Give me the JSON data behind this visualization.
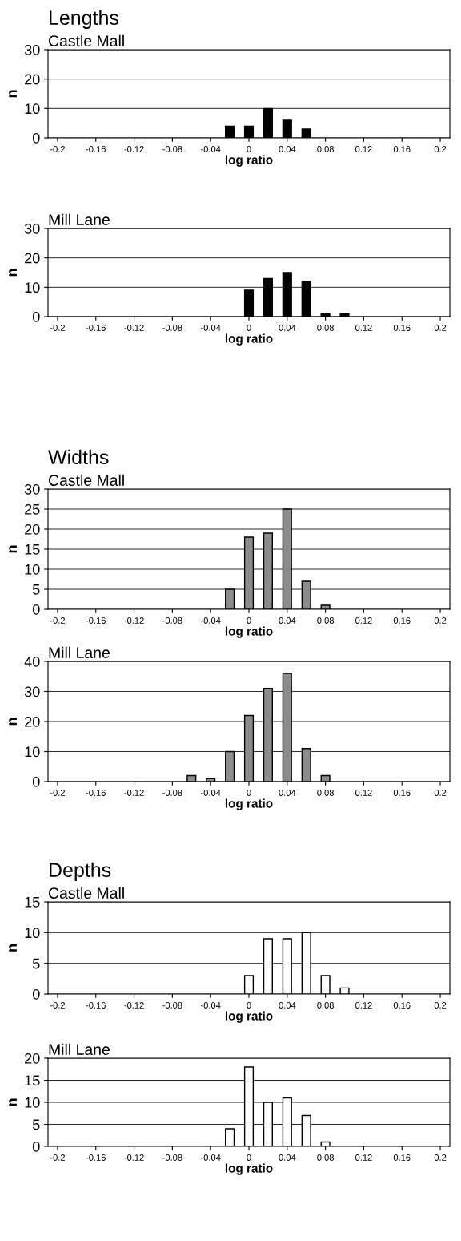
{
  "chart_data": [
    {
      "type": "bar",
      "title": "Lengths",
      "subtitle": "Castle Mall",
      "xlabel": "log ratio",
      "ylabel": "n",
      "x": [
        -0.02,
        0,
        0.02,
        0.04,
        0.06
      ],
      "values": [
        4,
        4,
        10,
        6,
        3
      ],
      "color": "#000000",
      "xlim": [
        -0.21,
        0.21
      ],
      "xticks": [
        -0.2,
        -0.16,
        -0.12,
        -0.08,
        -0.04,
        0,
        0.04,
        0.08,
        0.12,
        0.16,
        0.2
      ],
      "ylim": [
        0,
        30
      ],
      "yticks": [
        0,
        10,
        20,
        30
      ],
      "grid": "y",
      "legend": false
    },
    {
      "type": "bar",
      "title": "Mill Lane",
      "xlabel": "log ratio",
      "ylabel": "n",
      "x": [
        0,
        0.02,
        0.04,
        0.06,
        0.08,
        0.1
      ],
      "values": [
        9,
        13,
        15,
        12,
        1,
        1
      ],
      "color": "#000000",
      "xlim": [
        -0.21,
        0.21
      ],
      "xticks": [
        -0.2,
        -0.16,
        -0.12,
        -0.08,
        -0.04,
        0,
        0.04,
        0.08,
        0.12,
        0.16,
        0.2
      ],
      "ylim": [
        0,
        30
      ],
      "yticks": [
        0,
        10,
        20,
        30
      ],
      "grid": "y",
      "legend": false
    },
    {
      "type": "bar",
      "title": "Widths",
      "subtitle": "Castle Mall",
      "xlabel": "log ratio",
      "ylabel": "n",
      "x": [
        -0.02,
        0,
        0.02,
        0.04,
        0.06,
        0.08
      ],
      "values": [
        5,
        18,
        19,
        25,
        7,
        1
      ],
      "color": "#8c8c8c",
      "xlim": [
        -0.21,
        0.21
      ],
      "xticks": [
        -0.2,
        -0.16,
        -0.12,
        -0.08,
        -0.04,
        0,
        0.04,
        0.08,
        0.12,
        0.16,
        0.2
      ],
      "ylim": [
        0,
        30
      ],
      "yticks": [
        0,
        5,
        10,
        15,
        20,
        25,
        30
      ],
      "grid": "y",
      "legend": false
    },
    {
      "type": "bar",
      "title": "Mill Lane",
      "xlabel": "log ratio",
      "ylabel": "n",
      "x": [
        -0.06,
        -0.04,
        -0.02,
        0,
        0.02,
        0.04,
        0.06,
        0.08
      ],
      "values": [
        2,
        1,
        10,
        22,
        31,
        36,
        11,
        2
      ],
      "color": "#8c8c8c",
      "xlim": [
        -0.21,
        0.21
      ],
      "xticks": [
        -0.2,
        -0.16,
        -0.12,
        -0.08,
        -0.04,
        0,
        0.04,
        0.08,
        0.12,
        0.16,
        0.2
      ],
      "ylim": [
        0,
        40
      ],
      "yticks": [
        0,
        10,
        20,
        30,
        40
      ],
      "grid": "y",
      "legend": false
    },
    {
      "type": "bar",
      "title": "Depths",
      "subtitle": "Castle Mall",
      "xlabel": "log ratio",
      "ylabel": "n",
      "x": [
        0,
        0.02,
        0.04,
        0.06,
        0.08,
        0.1
      ],
      "values": [
        3,
        9,
        9,
        10,
        3,
        1
      ],
      "color": "#ffffff",
      "xlim": [
        -0.21,
        0.21
      ],
      "xticks": [
        -0.2,
        -0.16,
        -0.12,
        -0.08,
        -0.04,
        0,
        0.04,
        0.08,
        0.12,
        0.16,
        0.2
      ],
      "ylim": [
        0,
        15
      ],
      "yticks": [
        0,
        5,
        10,
        15
      ],
      "grid": "y",
      "legend": false
    },
    {
      "type": "bar",
      "title": "Mill Lane",
      "xlabel": "log ratio",
      "ylabel": "n",
      "x": [
        -0.02,
        0,
        0.02,
        0.04,
        0.06,
        0.08
      ],
      "values": [
        4,
        18,
        10,
        11,
        7,
        1
      ],
      "color": "#ffffff",
      "xlim": [
        -0.21,
        0.21
      ],
      "xticks": [
        -0.2,
        -0.16,
        -0.12,
        -0.08,
        -0.04,
        0,
        0.04,
        0.08,
        0.12,
        0.16,
        0.2
      ],
      "ylim": [
        0,
        20
      ],
      "yticks": [
        0,
        5,
        10,
        15,
        20
      ],
      "grid": "y",
      "legend": false
    }
  ]
}
